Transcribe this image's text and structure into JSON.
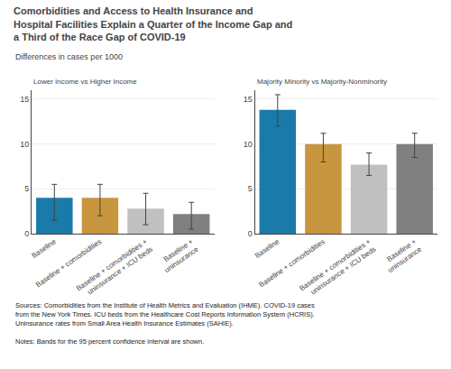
{
  "title": "Comorbidities and Access to Health Insurance and\nHospital Facilities Explain a Quarter of the Income Gap and\na Third of the Race Gap of COVID-19",
  "subtitle": "Differences in cases per 1000",
  "annotations": [
    "Sources: Comorbidities from the Institute of Health Metrics and Evaluation (IHME). COVID-19 cases\nfrom the New York Times. ICU beds from the Healthcare Cost Reports Information System (HCRIS).\nUninsurance rates from Small Area Health Insurance Estimates (SAHIE).",
    "Notes: Bands for the 95 percent confidence interval are shown."
  ],
  "chart_data": [
    {
      "type": "bar",
      "title": "Lower Income vs Higher Income",
      "categories": [
        "Baseline",
        "Baseline + comorbidities",
        "Baseline + comorbidities +\nuninsurance + ICU beds",
        "Baseline +\nuninsurance"
      ],
      "values": [
        4.0,
        4.0,
        2.8,
        2.2
      ],
      "error_low": [
        2.5,
        2.0,
        1.8,
        1.7
      ],
      "error_high": [
        1.5,
        1.5,
        1.7,
        1.3
      ],
      "colors": [
        "#1a7aaa",
        "#c8963e",
        "#c0c0c0",
        "#808080"
      ],
      "ylim": [
        0,
        16
      ],
      "yticks": [
        0,
        5,
        10,
        15
      ],
      "grid": true
    },
    {
      "type": "bar",
      "title": "Majority Minority vs Majority-Nonminority",
      "categories": [
        "Baseline",
        "Baseline + comorbidities",
        "Baseline + comorbidities +\nuninsurance + ICU beds",
        "Baseline +\nuninsurance"
      ],
      "values": [
        13.8,
        10.0,
        7.7,
        10.0
      ],
      "error_low": [
        1.8,
        2.0,
        1.2,
        1.5
      ],
      "error_high": [
        1.7,
        1.2,
        1.3,
        1.2
      ],
      "colors": [
        "#1a7aaa",
        "#c8963e",
        "#c0c0c0",
        "#808080"
      ],
      "ylim": [
        0,
        16
      ],
      "yticks": [
        0,
        5,
        10,
        15
      ],
      "grid": true
    }
  ]
}
